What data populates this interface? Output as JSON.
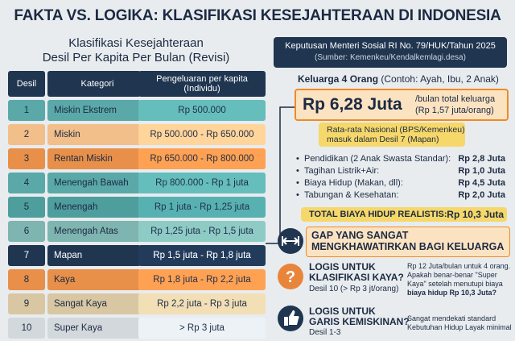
{
  "header": {
    "title": "FAKTA VS. LOGIKA: KLASIFIKASI KESEJAHTERAAN DI INDONESIA"
  },
  "table": {
    "title": [
      "Klasifikasi Kesejahteraan",
      "Desil Per Kapita Per Bulan (Revisi)"
    ],
    "columns": [
      "Desil",
      "Kategori",
      "Pengeluaran per kapita",
      "(Individu)"
    ],
    "rows": [
      [
        "1",
        "Miskin Ekstrem",
        "Rp 500.000"
      ],
      [
        "2",
        "Miskin",
        "Rp 500.000 - Rp 650.000"
      ],
      [
        "3",
        "Rentan Miskin",
        "Rp 650.000 - Rp 800.000"
      ],
      [
        "4",
        "Menengah Bawah",
        "Rp 800.000 - Rp 1 juta"
      ],
      [
        "5",
        "Menengah",
        "Rp 1 juta - Rp 1,25 juta"
      ],
      [
        "6",
        "Menengah Atas",
        "Rp 1,25 juta - Rp 1,5 juta"
      ],
      [
        "7",
        "Mapan",
        "Rp 1,5 juta - Rp 1,8 juta"
      ],
      [
        "8",
        "Kaya",
        "Rp 1,8 juta - Rp 2,2 juta"
      ],
      [
        "9",
        "Sangat Kaya",
        "Rp 2,2 juta - Rp 3 juta"
      ],
      [
        "10",
        "Super Kaya",
        "> Rp 3 juta"
      ]
    ]
  },
  "decree": {
    "title": "Keputusan Menteri Sosial RI No. 79/HUK/Tahun 2025",
    "source": "(Sumber: Kemenkeu/Kendalkemlagi.desa)"
  },
  "family": {
    "label": "Keluarga 4 Orang",
    "note": "(Contoh: Ayah, Ibu, 2 Anak)"
  },
  "cost": {
    "amount": "Rp 6,28 Juta",
    "unit": "/bulan total keluarga",
    "per_person": "(Rp 1,57 juta/orang)"
  },
  "national": [
    "Rata-rata Nasional (BPS/Kemenkeu)",
    "masuk dalam Desil 7 (Mapan)"
  ],
  "costs": {
    "items": [
      {
        "label": "Pendidikan (2 Anak Swasta Standar):",
        "value": "Rp 2,8 Juta"
      },
      {
        "label": "Tagihan Listrik+Air:",
        "value": "Rp 1,0 Juta"
      },
      {
        "label": "Biaya Hidup (Makan, dll):",
        "value": "Rp 4,5 Juta"
      },
      {
        "label": "Tabungan & Kesehatan:",
        "value": "Rp 2,0 Juta"
      }
    ],
    "total": {
      "label": "TOTAL BIAYA HIDUP REALISTIS:",
      "value": "Rp 10,3 Juta"
    }
  },
  "gap": [
    "GAP YANG SANGAT",
    "MENGKHAWATIRKAN BAGI KELUARGA"
  ],
  "q1": {
    "title": [
      "LOGIS UNTUK",
      "KLASIFIKASI KAYA?"
    ],
    "sub": "Desil 10 (> Rp 3 jt/orang)",
    "note": [
      "Rp 12 Juta/bulan untuk 4 orang.",
      "Apakah benar-benar \"Super",
      "Kaya\" setelah menutupi biaya",
      "biaya hidup Rp 10,3 Juta?"
    ]
  },
  "q2": {
    "title": [
      "LOGIS UNTUK",
      "GARIS KEMISKINAN?"
    ],
    "sub": "Desil 1-3",
    "note": [
      "Sangat mendekati standard",
      "Kebutuhan Hidup Layak minimal"
    ]
  }
}
